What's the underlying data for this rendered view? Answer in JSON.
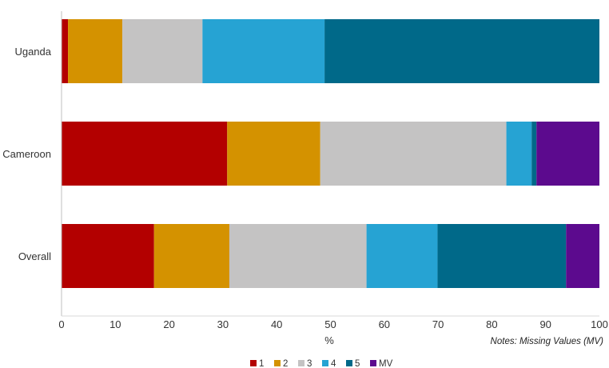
{
  "chart_data": {
    "type": "bar",
    "orientation": "horizontal",
    "stacked": true,
    "categories": [
      "Uganda",
      "Cameroon",
      "Overall"
    ],
    "series": [
      {
        "name": "1",
        "color": "#b30000",
        "values": [
          1.2,
          30.8,
          17.2
        ]
      },
      {
        "name": "2",
        "color": "#d49200",
        "values": [
          10.1,
          17.3,
          14.0
        ]
      },
      {
        "name": "3",
        "color": "#c4c3c3",
        "values": [
          14.9,
          34.6,
          25.5
        ]
      },
      {
        "name": "4",
        "color": "#26a3d3",
        "values": [
          22.7,
          4.7,
          13.2
        ]
      },
      {
        "name": "5",
        "color": "#006989",
        "values": [
          51.1,
          0.9,
          23.9
        ]
      },
      {
        "name": "MV",
        "color": "#5c0a8e",
        "values": [
          0.0,
          11.7,
          6.2
        ]
      }
    ],
    "xlabel": "%",
    "xlim": [
      0,
      100
    ],
    "xticks": [
      0,
      10,
      20,
      30,
      40,
      50,
      60,
      70,
      80,
      90,
      100
    ],
    "grid": false,
    "legend_position": "bottom",
    "note": "Notes: Missing Values (MV)"
  }
}
